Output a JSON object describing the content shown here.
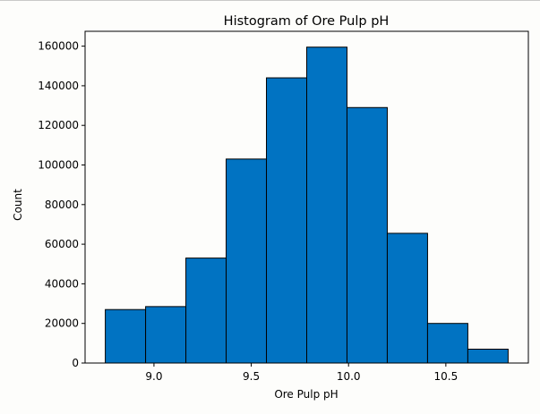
{
  "chart_data": {
    "type": "bar",
    "title": "Histogram of Ore Pulp pH",
    "xlabel": "Ore Pulp pH",
    "ylabel": "Count",
    "bin_edges": [
      8.75,
      8.957,
      9.164,
      9.371,
      9.578,
      9.785,
      9.992,
      10.199,
      10.406,
      10.613,
      10.82
    ],
    "values": [
      27000,
      28500,
      53000,
      103000,
      144000,
      159500,
      129000,
      65500,
      20000,
      7000
    ],
    "xlim": [
      8.646,
      10.924
    ],
    "ylim": [
      0,
      167500
    ],
    "x_ticks": [
      9.0,
      9.5,
      10.0,
      10.5
    ],
    "x_tick_labels": [
      "9.0",
      "9.5",
      "10.0",
      "10.5"
    ],
    "y_ticks": [
      0,
      20000,
      40000,
      60000,
      80000,
      100000,
      120000,
      140000,
      160000
    ],
    "y_tick_labels": [
      "0",
      "20000",
      "40000",
      "60000",
      "80000",
      "100000",
      "120000",
      "140000",
      "160000"
    ],
    "bar_color": "#0173c2",
    "edge_color": "#000000",
    "grid": false,
    "legend": "none"
  }
}
